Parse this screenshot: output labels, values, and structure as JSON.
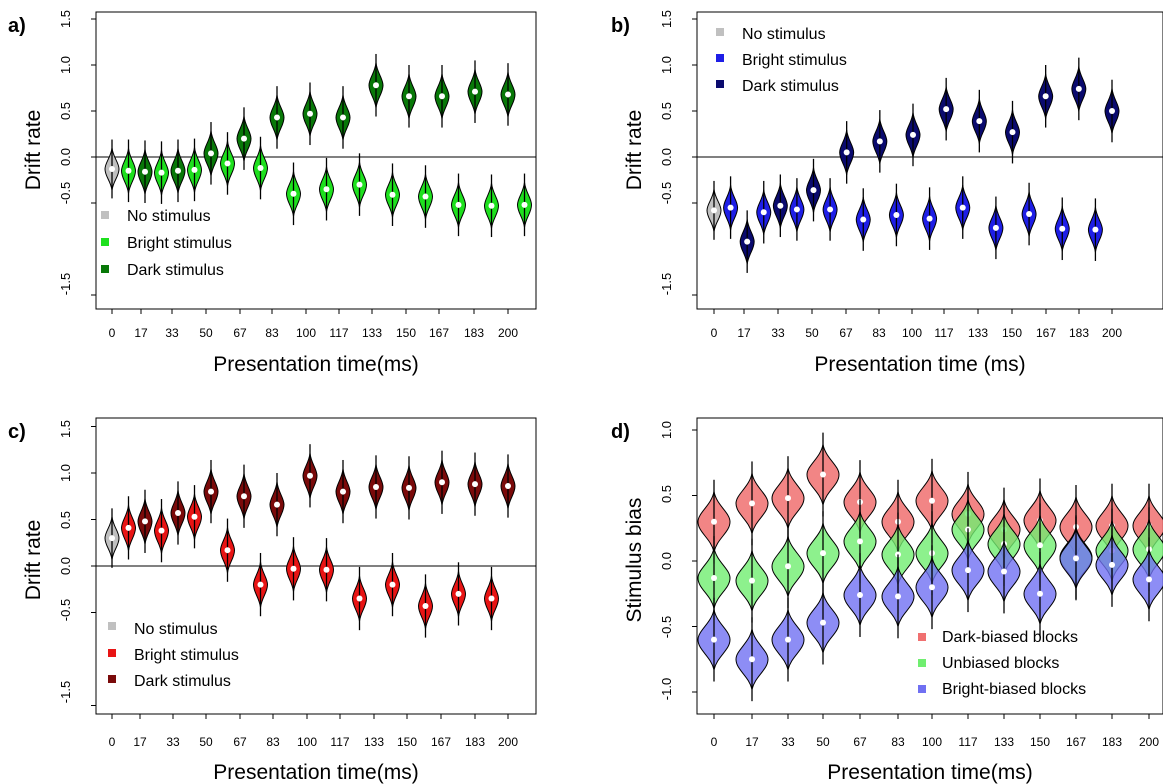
{
  "chart_data": [
    {
      "type": "violin",
      "panel_label": "a)",
      "xlabel": "Presentation time(ms)",
      "ylabel": "Drift rate",
      "ylim": [
        -1.7,
        1.6
      ],
      "yticks": [
        "-1.5",
        "-0.5",
        "0.0",
        "0.5",
        "1.0",
        "1.5"
      ],
      "ytick_values": [
        -1.5,
        -0.5,
        0,
        0.5,
        1.0,
        1.5
      ],
      "zero_line": true,
      "legend_position": "bottom-left",
      "categories": [
        "0",
        "17",
        "33",
        "50",
        "67",
        "83",
        "100",
        "117",
        "133",
        "150",
        "167",
        "183",
        "200"
      ],
      "series": [
        {
          "name": "No stimulus",
          "color": "#c0c0c0",
          "offsets": [
            0
          ],
          "values": [
            -0.13
          ],
          "halfwidth": 0.06
        },
        {
          "name": "Bright stimulus",
          "color": "#1ee01e",
          "offsets": [
            -0.19,
            0.25
          ],
          "values": [
            -0.15,
            -0.17,
            -0.14,
            -0.07,
            -0.12,
            -0.4,
            -0.35,
            -0.3,
            -0.41,
            -0.43,
            -0.52,
            -0.53,
            -0.52
          ],
          "halfwidth": 0.08
        },
        {
          "name": "Dark stimulus",
          "color": "#087808",
          "offsets": [
            0.19,
            -0.25
          ],
          "values": [
            -0.16,
            -0.15,
            0.04,
            0.2,
            0.43,
            0.47,
            0.43,
            0.78,
            0.66,
            0.66,
            0.71,
            0.68,
            0.67
          ],
          "halfwidth": 0.08
        }
      ]
    },
    {
      "type": "violin",
      "panel_label": "b)",
      "xlabel": "Presentation time (ms)",
      "ylabel": "Drift rate",
      "ylim": [
        -1.7,
        1.6
      ],
      "yticks": [
        "-1.5",
        "-0.5",
        "0.0",
        "0.5",
        "1.0",
        "1.5"
      ],
      "ytick_values": [
        -1.5,
        -0.5,
        0,
        0.5,
        1.0,
        1.5
      ],
      "zero_line": true,
      "legend_position": "top-left",
      "categories": [
        "0",
        "17",
        "33",
        "50",
        "67",
        "83",
        "100",
        "117",
        "133",
        "150",
        "167",
        "183",
        "200"
      ],
      "series": [
        {
          "name": "No stimulus",
          "color": "#c0c0c0",
          "offsets": [
            0
          ],
          "values": [
            -0.58
          ],
          "halfwidth": 0.06
        },
        {
          "name": "Bright stimulus",
          "color": "#1e1ee6",
          "offsets": [
            -0.19,
            0.25
          ],
          "values": [
            -0.55,
            -0.6,
            -0.57,
            -0.57,
            -0.68,
            -0.63,
            -0.67,
            -0.55,
            -0.77,
            -0.62,
            -0.78,
            -0.79
          ],
          "halfwidth": 0.08
        },
        {
          "name": "Dark stimulus",
          "color": "#0a0a6e",
          "offsets": [
            0.19,
            -0.25
          ],
          "values": [
            -0.92,
            -0.53,
            -0.36,
            0.05,
            0.17,
            0.24,
            0.52,
            0.39,
            0.27,
            0.66,
            0.74,
            0.5
          ],
          "halfwidth": 0.08
        }
      ]
    },
    {
      "type": "violin",
      "panel_label": "c)",
      "xlabel": "Presentation time(ms)",
      "ylabel": "Drift rate",
      "ylim": [
        -1.7,
        1.6
      ],
      "yticks": [
        "-1.5",
        "-0.5",
        "0.0",
        "0.5",
        "1.0",
        "1.5"
      ],
      "ytick_values": [
        -1.5,
        -0.5,
        0,
        0.5,
        1.0,
        1.5
      ],
      "zero_line": true,
      "legend_position": "bottom-left",
      "categories": [
        "0",
        "17",
        "33",
        "50",
        "67",
        "83",
        "100",
        "117",
        "133",
        "150",
        "167",
        "183",
        "200"
      ],
      "series": [
        {
          "name": "No stimulus",
          "color": "#c0c0c0",
          "offsets": [
            0
          ],
          "values": [
            0.3
          ],
          "halfwidth": 0.06
        },
        {
          "name": "Bright stimulus",
          "color": "#e81414",
          "offsets": [
            -0.19,
            0.25
          ],
          "values": [
            0.41,
            0.38,
            0.53,
            0.17,
            -0.2,
            -0.03,
            -0.04,
            -0.35,
            -0.2,
            -0.43,
            -0.3,
            -0.35
          ],
          "halfwidth": 0.08
        },
        {
          "name": "Dark stimulus",
          "color": "#7a0a0a",
          "offsets": [
            0.19,
            -0.25
          ],
          "values": [
            0.48,
            0.57,
            0.8,
            0.75,
            0.66,
            0.97,
            0.8,
            0.85,
            0.84,
            0.9,
            0.88,
            0.86
          ],
          "halfwidth": 0.08
        }
      ]
    },
    {
      "type": "violin",
      "panel_label": "d)",
      "xlabel": "Presentation time(ms)",
      "ylabel": "Stimulus bias",
      "ylim": [
        -1.13,
        1.08
      ],
      "yticks": [
        "-1.0",
        "-0.5",
        "0.0",
        "0.5",
        "1.0"
      ],
      "ytick_values": [
        -1.0,
        -0.5,
        0,
        0.5,
        1.0
      ],
      "zero_line": false,
      "legend_position": "bottom-right",
      "categories": [
        "0",
        "17",
        "33",
        "50",
        "67",
        "83",
        "100",
        "117",
        "133",
        "150",
        "167",
        "183",
        "200"
      ],
      "series": [
        {
          "name": "Dark-biased blocks",
          "color": "#f07070",
          "opacity": 0.85,
          "values": [
            0.3,
            0.44,
            0.48,
            0.66,
            0.45,
            0.3,
            0.46,
            0.36,
            0.24,
            0.31,
            0.26,
            0.27,
            0.27
          ],
          "halfwidth": 0.2
        },
        {
          "name": "Unbiased blocks",
          "color": "#70ee70",
          "opacity": 0.8,
          "values": [
            -0.13,
            -0.15,
            -0.04,
            0.06,
            0.15,
            0.05,
            0.06,
            0.24,
            0.13,
            0.12,
            0.03,
            0.08,
            0.09
          ],
          "halfwidth": 0.2
        },
        {
          "name": "Bright-biased blocks",
          "color": "#7070f2",
          "opacity": 0.8,
          "values": [
            -0.6,
            -0.75,
            -0.6,
            -0.47,
            -0.26,
            -0.27,
            -0.2,
            -0.07,
            -0.08,
            -0.25,
            0.02,
            -0.03,
            -0.14
          ],
          "halfwidth": 0.2
        }
      ]
    }
  ]
}
